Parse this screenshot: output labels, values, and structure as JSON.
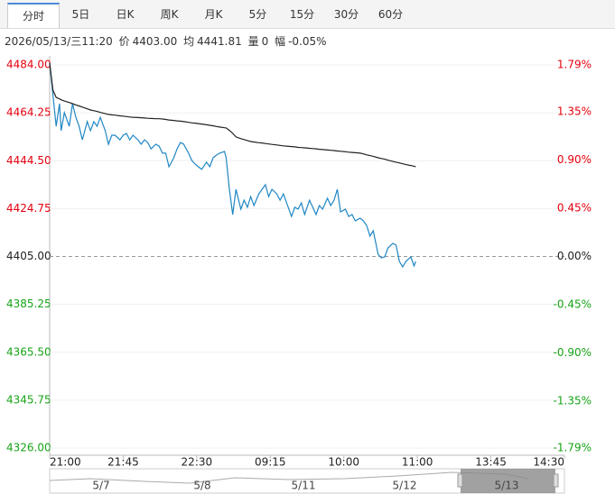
{
  "tabs": [
    "分时",
    "5日",
    "日K",
    "周K",
    "月K",
    "5分",
    "15分",
    "30分",
    "60分"
  ],
  "info": {
    "datetime": "2026/05/13/三11:20",
    "price_label": "价",
    "price": "4403.00",
    "avg_label": "均",
    "avg": "4441.81",
    "vol_label": "量",
    "vol": "0",
    "chg_label": "幅",
    "chg": "-0.05%"
  },
  "navigator": {
    "labels": [
      "5/7",
      "5/8",
      "5/11",
      "5/12",
      "5/13"
    ]
  },
  "chart_data": {
    "type": "line",
    "x": [
      0,
      2,
      4,
      6,
      7,
      9,
      12,
      14,
      16,
      18,
      20,
      23,
      25,
      27,
      29,
      31,
      34,
      36,
      38,
      40,
      43,
      45,
      47,
      49,
      51,
      54,
      56,
      58,
      60,
      62,
      65,
      67,
      69,
      71,
      73,
      76,
      78,
      80,
      82,
      85,
      87,
      89,
      91,
      93,
      96,
      98,
      100,
      102,
      104,
      107,
      108,
      110,
      112,
      114,
      117,
      119,
      121,
      123,
      125,
      128,
      130,
      132,
      134,
      136,
      139,
      141,
      143,
      145,
      148,
      150,
      152,
      154,
      156,
      159,
      161,
      163,
      165,
      167,
      170,
      172,
      174,
      176,
      178,
      181,
      183,
      185,
      187,
      190,
      192,
      194,
      196,
      198,
      201,
      203,
      205,
      207,
      210,
      212,
      214,
      216,
      218,
      221,
      223,
      224
    ],
    "series": [
      {
        "color": "#1f87c4",
        "values": [
          4484.7,
          4471.7,
          4458.7,
          4468.0,
          4456.9,
          4464.3,
          4458.7,
          4468.0,
          4462.4,
          4458.7,
          4453.1,
          4460.6,
          4456.9,
          4460.6,
          4458.7,
          4462.4,
          4456.9,
          4451.3,
          4455.0,
          4455.0,
          4453.1,
          4455.0,
          4455.7,
          4453.1,
          4455.0,
          4453.1,
          4451.3,
          4453.1,
          4452.0,
          4449.4,
          4451.3,
          4450.5,
          4447.6,
          4447.6,
          4442.0,
          4445.7,
          4449.4,
          4452.0,
          4451.3,
          4447.6,
          4444.6,
          4443.1,
          4442.0,
          4440.9,
          4443.9,
          4442.0,
          4445.7,
          4446.8,
          4447.6,
          4448.3,
          4445.7,
          4432.7,
          4422.3,
          4432.7,
          4424.5,
          4428.2,
          4425.3,
          4429.7,
          4426.0,
          4430.8,
          4432.7,
          4434.6,
          4429.7,
          4432.7,
          4430.8,
          4428.2,
          4430.8,
          4427.1,
          4421.5,
          4425.3,
          4424.5,
          4427.1,
          4422.3,
          4428.2,
          4425.3,
          4422.3,
          4426.0,
          4424.5,
          4429.0,
          4426.0,
          4428.2,
          4432.7,
          4423.4,
          4424.5,
          4421.5,
          4422.3,
          4419.7,
          4420.8,
          4419.7,
          4417.8,
          4413.4,
          4415.6,
          4405.9,
          4404.4,
          4404.8,
          4408.5,
          4410.4,
          4409.7,
          4403.0,
          4400.7,
          4403.0,
          4404.8,
          4401.1,
          4403.0
        ]
      },
      {
        "color": "#222222",
        "values": [
          4484.7,
          4473.6,
          4470.6,
          4470.0,
          4469.6,
          4469.1,
          4468.5,
          4468.0,
          4467.5,
          4467.1,
          4466.6,
          4465.9,
          4465.4,
          4465.1,
          4464.8,
          4464.4,
          4463.9,
          4463.6,
          4463.4,
          4463.3,
          4463.0,
          4462.9,
          4462.7,
          4462.5,
          4462.4,
          4462.3,
          4462.2,
          4462.1,
          4462.0,
          4461.9,
          4461.8,
          4461.8,
          4461.7,
          4461.5,
          4461.3,
          4461.1,
          4460.9,
          4460.8,
          4460.6,
          4460.3,
          4460.1,
          4460.0,
          4459.8,
          4459.6,
          4459.3,
          4459.1,
          4458.9,
          4458.6,
          4458.4,
          4458.1,
          4458.0,
          4457.0,
          4455.8,
          4454.3,
          4453.6,
          4453.2,
          4452.8,
          4452.4,
          4452.2,
          4451.9,
          4451.8,
          4451.6,
          4451.4,
          4451.2,
          4451.0,
          4450.8,
          4450.6,
          4450.5,
          4450.3,
          4450.2,
          4450.0,
          4449.9,
          4449.8,
          4449.6,
          4449.5,
          4449.4,
          4449.2,
          4449.1,
          4448.9,
          4448.8,
          4448.7,
          4448.5,
          4448.4,
          4448.2,
          4448.0,
          4447.9,
          4447.8,
          4447.6,
          4447.3,
          4446.9,
          4446.6,
          4446.3,
          4445.7,
          4445.4,
          4445.1,
          4444.7,
          4444.2,
          4443.9,
          4443.6,
          4443.2,
          4442.9,
          4442.5,
          4442.2,
          4442.0
        ]
      }
    ],
    "xlim": [
      0,
      315
    ],
    "xticks": [
      {
        "value": 0,
        "label": "21:00"
      },
      {
        "value": 45,
        "label": "21:45"
      },
      {
        "value": 90,
        "label": "22:30"
      },
      {
        "value": 135,
        "label": "09:15"
      },
      {
        "value": 180,
        "label": "10:00"
      },
      {
        "value": 225,
        "label": "11:00"
      },
      {
        "value": 270,
        "label": "13:45"
      },
      {
        "value": 315,
        "label": "14:30"
      }
    ],
    "ylim": [
      4326,
      4484
    ],
    "yticks": [
      {
        "value": 4484,
        "label": "4484.00"
      },
      {
        "value": 4464.25,
        "label": "4464.25"
      },
      {
        "value": 4444.5,
        "label": "4444.50"
      },
      {
        "value": 4424.75,
        "label": "4424.75"
      },
      {
        "value": 4405,
        "label": "4405.00"
      },
      {
        "value": 4385.25,
        "label": "4385.25"
      },
      {
        "value": 4365.5,
        "label": "4365.50"
      },
      {
        "value": 4345.75,
        "label": "4345.75"
      },
      {
        "value": 4326,
        "label": "4326.00"
      }
    ],
    "y2lim": [
      -1.79,
      1.79
    ],
    "y2ticks": [
      {
        "value": 1.79,
        "label": "1.79%"
      },
      {
        "value": 1.35,
        "label": "1.35%"
      },
      {
        "value": 0.9,
        "label": "0.90%"
      },
      {
        "value": 0.45,
        "label": "0.45%"
      },
      {
        "value": 0,
        "label": "0.00%"
      },
      {
        "value": -0.45,
        "label": "-0.45%"
      },
      {
        "value": -0.9,
        "label": "-0.90%"
      },
      {
        "value": -1.35,
        "label": "-1.35%"
      },
      {
        "value": -1.79,
        "label": "-1.79%"
      }
    ],
    "reference_line": 4405,
    "grid": true,
    "up_color": "#e4000e",
    "down_color": "#17a317",
    "flat_color": "#222222"
  }
}
